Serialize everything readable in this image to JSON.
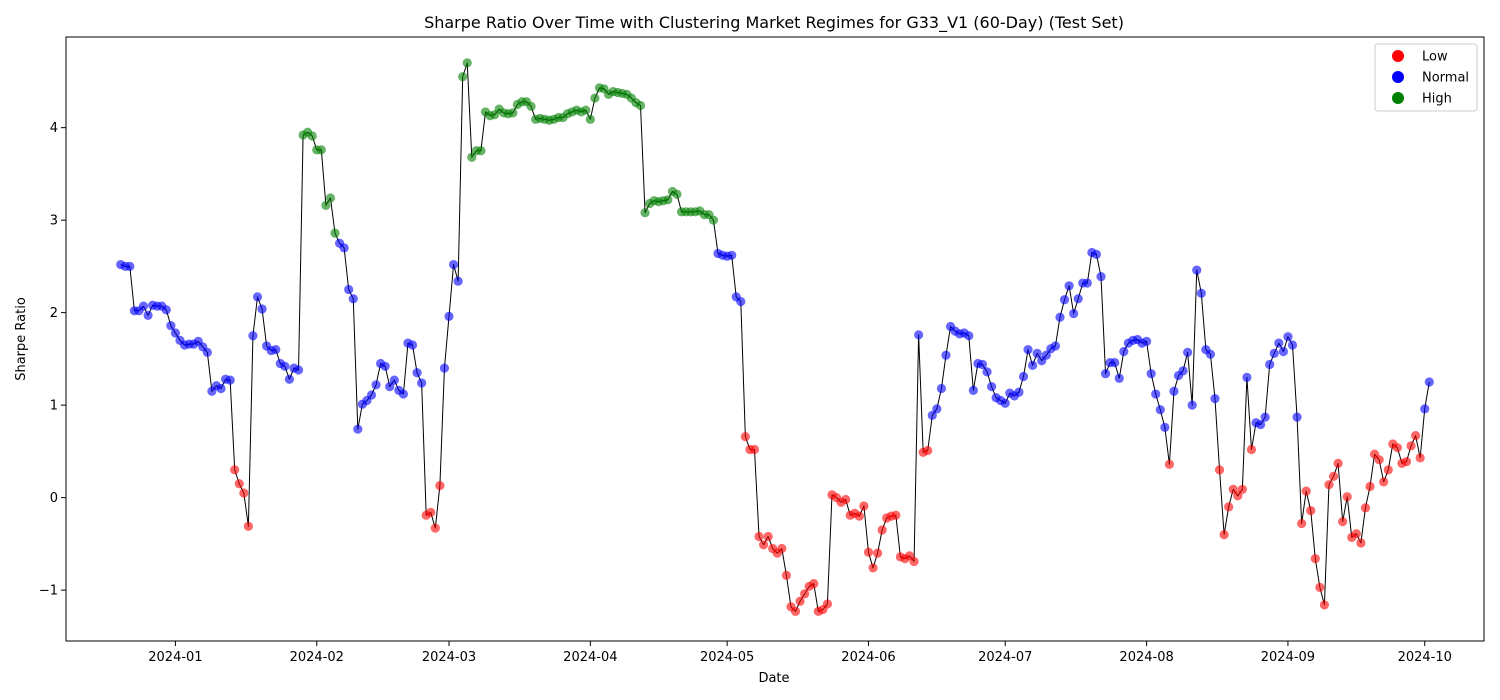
{
  "chart_data": {
    "type": "scatter",
    "title": "Sharpe Ratio Over Time with Clustering Market Regimes for G33_V1 (60-Day) (Test Set)",
    "xlabel": "Date",
    "ylabel": "Sharpe Ratio",
    "x_range": [
      "2023-12-08",
      "2024-10-14"
    ],
    "ylim": [
      -1.55,
      4.98
    ],
    "x_ticks": [
      "2024-01-01",
      "2024-02-01",
      "2024-03-01",
      "2024-04-01",
      "2024-05-01",
      "2024-06-01",
      "2024-07-01",
      "2024-08-01",
      "2024-09-01",
      "2024-10-01"
    ],
    "x_tick_labels": [
      "2024-01",
      "2024-02",
      "2024-03",
      "2024-04",
      "2024-05",
      "2024-06",
      "2024-07",
      "2024-08",
      "2024-09",
      "2024-10"
    ],
    "y_ticks": [
      -1,
      0,
      1,
      2,
      3,
      4
    ],
    "y_tick_labels": [
      "−1",
      "0",
      "1",
      "2",
      "3",
      "4"
    ],
    "grid": false,
    "legend_position": "top-right",
    "legend": [
      {
        "label": "Low",
        "color": "#ff0000"
      },
      {
        "label": "Normal",
        "color": "#0000ff"
      },
      {
        "label": "High",
        "color": "#008000"
      }
    ],
    "line_color": "#000000",
    "point_alpha": 0.6,
    "start_date": "2023-12-20",
    "points": [
      [
        0,
        2.52,
        "N"
      ],
      [
        1,
        2.5,
        "N"
      ],
      [
        2,
        2.5,
        "N"
      ],
      [
        3,
        2.02,
        "N"
      ],
      [
        4,
        2.02,
        "N"
      ],
      [
        5,
        2.07,
        "N"
      ],
      [
        6,
        1.97,
        "N"
      ],
      [
        7,
        2.08,
        "N"
      ],
      [
        8,
        2.07,
        "N"
      ],
      [
        9,
        2.07,
        "N"
      ],
      [
        10,
        2.03,
        "N"
      ],
      [
        11,
        1.86,
        "N"
      ],
      [
        12,
        1.78,
        "N"
      ],
      [
        13,
        1.7,
        "N"
      ],
      [
        14,
        1.65,
        "N"
      ],
      [
        15,
        1.66,
        "N"
      ],
      [
        16,
        1.66,
        "N"
      ],
      [
        17,
        1.69,
        "N"
      ],
      [
        18,
        1.63,
        "N"
      ],
      [
        19,
        1.57,
        "N"
      ],
      [
        20,
        1.15,
        "N"
      ],
      [
        21,
        1.21,
        "N"
      ],
      [
        22,
        1.18,
        "N"
      ],
      [
        23,
        1.28,
        "N"
      ],
      [
        24,
        1.27,
        "N"
      ],
      [
        25,
        0.3,
        "L"
      ],
      [
        26,
        0.15,
        "L"
      ],
      [
        27,
        0.05,
        "L"
      ],
      [
        28,
        -0.31,
        "L"
      ],
      [
        29,
        1.75,
        "N"
      ],
      [
        30,
        2.17,
        "N"
      ],
      [
        31,
        2.04,
        "N"
      ],
      [
        32,
        1.64,
        "N"
      ],
      [
        33,
        1.59,
        "N"
      ],
      [
        34,
        1.6,
        "N"
      ],
      [
        35,
        1.45,
        "N"
      ],
      [
        36,
        1.42,
        "N"
      ],
      [
        37,
        1.28,
        "N"
      ],
      [
        38,
        1.4,
        "N"
      ],
      [
        39,
        1.38,
        "N"
      ],
      [
        40,
        3.92,
        "H"
      ],
      [
        41,
        3.95,
        "H"
      ],
      [
        42,
        3.91,
        "H"
      ],
      [
        43,
        3.76,
        "H"
      ],
      [
        44,
        3.76,
        "H"
      ],
      [
        45,
        3.16,
        "H"
      ],
      [
        46,
        3.24,
        "H"
      ],
      [
        47,
        2.86,
        "H"
      ],
      [
        48,
        2.75,
        "N"
      ],
      [
        49,
        2.7,
        "N"
      ],
      [
        50,
        2.25,
        "N"
      ],
      [
        51,
        2.15,
        "N"
      ],
      [
        52,
        0.74,
        "N"
      ],
      [
        53,
        1.01,
        "N"
      ],
      [
        54,
        1.05,
        "N"
      ],
      [
        55,
        1.11,
        "N"
      ],
      [
        56,
        1.22,
        "N"
      ],
      [
        57,
        1.45,
        "N"
      ],
      [
        58,
        1.42,
        "N"
      ],
      [
        59,
        1.2,
        "N"
      ],
      [
        60,
        1.27,
        "N"
      ],
      [
        61,
        1.16,
        "N"
      ],
      [
        62,
        1.12,
        "N"
      ],
      [
        63,
        1.67,
        "N"
      ],
      [
        64,
        1.65,
        "N"
      ],
      [
        65,
        1.35,
        "N"
      ],
      [
        66,
        1.24,
        "N"
      ],
      [
        67,
        -0.19,
        "L"
      ],
      [
        68,
        -0.16,
        "L"
      ],
      [
        69,
        -0.33,
        "L"
      ],
      [
        70,
        0.13,
        "L"
      ],
      [
        71,
        1.4,
        "N"
      ],
      [
        72,
        1.96,
        "N"
      ],
      [
        73,
        2.52,
        "N"
      ],
      [
        74,
        2.34,
        "N"
      ],
      [
        75,
        4.55,
        "H"
      ],
      [
        76,
        4.7,
        "H"
      ],
      [
        77,
        3.68,
        "H"
      ],
      [
        78,
        3.75,
        "H"
      ],
      [
        79,
        3.75,
        "H"
      ],
      [
        80,
        4.17,
        "H"
      ],
      [
        81,
        4.13,
        "H"
      ],
      [
        82,
        4.14,
        "H"
      ],
      [
        83,
        4.2,
        "H"
      ],
      [
        84,
        4.16,
        "H"
      ],
      [
        85,
        4.15,
        "H"
      ],
      [
        86,
        4.16,
        "H"
      ],
      [
        87,
        4.25,
        "H"
      ],
      [
        88,
        4.28,
        "H"
      ],
      [
        89,
        4.28,
        "H"
      ],
      [
        90,
        4.23,
        "H"
      ],
      [
        91,
        4.09,
        "H"
      ],
      [
        92,
        4.1,
        "H"
      ],
      [
        93,
        4.09,
        "H"
      ],
      [
        94,
        4.08,
        "H"
      ],
      [
        95,
        4.09,
        "H"
      ],
      [
        96,
        4.11,
        "H"
      ],
      [
        97,
        4.11,
        "H"
      ],
      [
        98,
        4.15,
        "H"
      ],
      [
        99,
        4.17,
        "H"
      ],
      [
        100,
        4.19,
        "H"
      ],
      [
        101,
        4.17,
        "H"
      ],
      [
        102,
        4.19,
        "H"
      ],
      [
        103,
        4.09,
        "H"
      ],
      [
        104,
        4.32,
        "H"
      ],
      [
        105,
        4.43,
        "H"
      ],
      [
        106,
        4.42,
        "H"
      ],
      [
        107,
        4.36,
        "H"
      ],
      [
        108,
        4.39,
        "H"
      ],
      [
        109,
        4.38,
        "H"
      ],
      [
        110,
        4.37,
        "H"
      ],
      [
        111,
        4.36,
        "H"
      ],
      [
        112,
        4.32,
        "H"
      ],
      [
        113,
        4.27,
        "H"
      ],
      [
        114,
        4.24,
        "H"
      ],
      [
        115,
        3.08,
        "H"
      ],
      [
        116,
        3.18,
        "H"
      ],
      [
        117,
        3.21,
        "H"
      ],
      [
        118,
        3.2,
        "H"
      ],
      [
        119,
        3.21,
        "H"
      ],
      [
        120,
        3.22,
        "H"
      ],
      [
        121,
        3.31,
        "H"
      ],
      [
        122,
        3.28,
        "H"
      ],
      [
        123,
        3.09,
        "H"
      ],
      [
        124,
        3.09,
        "H"
      ],
      [
        125,
        3.09,
        "H"
      ],
      [
        126,
        3.09,
        "H"
      ],
      [
        127,
        3.1,
        "H"
      ],
      [
        128,
        3.06,
        "H"
      ],
      [
        129,
        3.06,
        "H"
      ],
      [
        130,
        3.0,
        "H"
      ],
      [
        131,
        2.64,
        "N"
      ],
      [
        132,
        2.62,
        "N"
      ],
      [
        133,
        2.61,
        "N"
      ],
      [
        134,
        2.62,
        "N"
      ],
      [
        135,
        2.17,
        "N"
      ],
      [
        136,
        2.12,
        "N"
      ],
      [
        137,
        0.66,
        "L"
      ],
      [
        138,
        0.52,
        "L"
      ],
      [
        139,
        0.52,
        "L"
      ],
      [
        140,
        -0.42,
        "L"
      ],
      [
        141,
        -0.51,
        "L"
      ],
      [
        142,
        -0.42,
        "L"
      ],
      [
        143,
        -0.55,
        "L"
      ],
      [
        144,
        -0.6,
        "L"
      ],
      [
        145,
        -0.55,
        "L"
      ],
      [
        146,
        -0.84,
        "L"
      ],
      [
        147,
        -1.18,
        "L"
      ],
      [
        148,
        -1.23,
        "L"
      ],
      [
        149,
        -1.12,
        "L"
      ],
      [
        150,
        -1.04,
        "L"
      ],
      [
        151,
        -0.96,
        "L"
      ],
      [
        152,
        -0.93,
        "L"
      ],
      [
        153,
        -1.23,
        "L"
      ],
      [
        154,
        -1.21,
        "L"
      ],
      [
        155,
        -1.15,
        "L"
      ],
      [
        156,
        0.03,
        "L"
      ],
      [
        157,
        0.0,
        "L"
      ],
      [
        158,
        -0.05,
        "L"
      ],
      [
        159,
        -0.02,
        "L"
      ],
      [
        160,
        -0.19,
        "L"
      ],
      [
        161,
        -0.17,
        "L"
      ],
      [
        162,
        -0.2,
        "L"
      ],
      [
        163,
        -0.09,
        "L"
      ],
      [
        164,
        -0.59,
        "L"
      ],
      [
        165,
        -0.76,
        "L"
      ],
      [
        166,
        -0.6,
        "L"
      ],
      [
        167,
        -0.35,
        "L"
      ],
      [
        168,
        -0.22,
        "L"
      ],
      [
        169,
        -0.2,
        "L"
      ],
      [
        170,
        -0.19,
        "L"
      ],
      [
        171,
        -0.64,
        "L"
      ],
      [
        172,
        -0.66,
        "L"
      ],
      [
        173,
        -0.63,
        "L"
      ],
      [
        174,
        -0.69,
        "L"
      ],
      [
        175,
        1.76,
        "N"
      ],
      [
        176,
        0.49,
        "L"
      ],
      [
        177,
        0.51,
        "L"
      ],
      [
        178,
        0.89,
        "N"
      ],
      [
        179,
        0.96,
        "N"
      ],
      [
        180,
        1.18,
        "N"
      ],
      [
        181,
        1.54,
        "N"
      ],
      [
        182,
        1.85,
        "N"
      ],
      [
        183,
        1.8,
        "N"
      ],
      [
        184,
        1.77,
        "N"
      ],
      [
        185,
        1.78,
        "N"
      ],
      [
        186,
        1.75,
        "N"
      ],
      [
        187,
        1.16,
        "N"
      ],
      [
        188,
        1.45,
        "N"
      ],
      [
        189,
        1.44,
        "N"
      ],
      [
        190,
        1.36,
        "N"
      ],
      [
        191,
        1.2,
        "N"
      ],
      [
        192,
        1.08,
        "N"
      ],
      [
        193,
        1.05,
        "N"
      ],
      [
        194,
        1.02,
        "N"
      ],
      [
        195,
        1.13,
        "N"
      ],
      [
        196,
        1.1,
        "N"
      ],
      [
        197,
        1.14,
        "N"
      ],
      [
        198,
        1.31,
        "N"
      ],
      [
        199,
        1.6,
        "N"
      ],
      [
        200,
        1.43,
        "N"
      ],
      [
        201,
        1.56,
        "N"
      ],
      [
        202,
        1.48,
        "N"
      ],
      [
        203,
        1.54,
        "N"
      ],
      [
        204,
        1.61,
        "N"
      ],
      [
        205,
        1.64,
        "N"
      ],
      [
        206,
        1.95,
        "N"
      ],
      [
        207,
        2.14,
        "N"
      ],
      [
        208,
        2.29,
        "N"
      ],
      [
        209,
        1.99,
        "N"
      ],
      [
        210,
        2.15,
        "N"
      ],
      [
        211,
        2.32,
        "N"
      ],
      [
        212,
        2.32,
        "N"
      ],
      [
        213,
        2.65,
        "N"
      ],
      [
        214,
        2.63,
        "N"
      ],
      [
        215,
        2.39,
        "N"
      ],
      [
        216,
        1.34,
        "N"
      ],
      [
        217,
        1.46,
        "N"
      ],
      [
        218,
        1.46,
        "N"
      ],
      [
        219,
        1.29,
        "N"
      ],
      [
        220,
        1.58,
        "N"
      ],
      [
        221,
        1.67,
        "N"
      ],
      [
        222,
        1.7,
        "N"
      ],
      [
        223,
        1.71,
        "N"
      ],
      [
        224,
        1.67,
        "N"
      ],
      [
        225,
        1.69,
        "N"
      ],
      [
        226,
        1.34,
        "N"
      ],
      [
        227,
        1.12,
        "N"
      ],
      [
        228,
        0.95,
        "N"
      ],
      [
        229,
        0.76,
        "N"
      ],
      [
        230,
        0.36,
        "L"
      ],
      [
        231,
        1.15,
        "N"
      ],
      [
        232,
        1.32,
        "N"
      ],
      [
        233,
        1.37,
        "N"
      ],
      [
        234,
        1.57,
        "N"
      ],
      [
        235,
        1.0,
        "N"
      ],
      [
        236,
        2.46,
        "N"
      ],
      [
        237,
        2.21,
        "N"
      ],
      [
        238,
        1.6,
        "N"
      ],
      [
        239,
        1.55,
        "N"
      ],
      [
        240,
        1.07,
        "N"
      ],
      [
        241,
        0.3,
        "L"
      ],
      [
        242,
        -0.4,
        "L"
      ],
      [
        243,
        -0.1,
        "L"
      ],
      [
        244,
        0.09,
        "L"
      ],
      [
        245,
        0.02,
        "L"
      ],
      [
        246,
        0.09,
        "L"
      ],
      [
        247,
        1.3,
        "N"
      ],
      [
        248,
        0.52,
        "L"
      ],
      [
        249,
        0.81,
        "N"
      ],
      [
        250,
        0.79,
        "N"
      ],
      [
        251,
        0.87,
        "N"
      ],
      [
        252,
        1.44,
        "N"
      ],
      [
        253,
        1.56,
        "N"
      ],
      [
        254,
        1.67,
        "N"
      ],
      [
        255,
        1.58,
        "N"
      ],
      [
        256,
        1.74,
        "N"
      ],
      [
        257,
        1.65,
        "N"
      ],
      [
        258,
        0.87,
        "N"
      ],
      [
        259,
        -0.28,
        "L"
      ],
      [
        260,
        0.07,
        "L"
      ],
      [
        261,
        -0.14,
        "L"
      ],
      [
        262,
        -0.66,
        "L"
      ],
      [
        263,
        -0.97,
        "L"
      ],
      [
        264,
        -1.16,
        "L"
      ],
      [
        265,
        0.14,
        "L"
      ],
      [
        266,
        0.23,
        "L"
      ],
      [
        267,
        0.37,
        "L"
      ],
      [
        268,
        -0.26,
        "L"
      ],
      [
        269,
        0.01,
        "L"
      ],
      [
        270,
        -0.43,
        "L"
      ],
      [
        271,
        -0.39,
        "L"
      ],
      [
        272,
        -0.49,
        "L"
      ],
      [
        273,
        -0.11,
        "L"
      ],
      [
        274,
        0.12,
        "L"
      ],
      [
        275,
        0.47,
        "L"
      ],
      [
        276,
        0.41,
        "L"
      ],
      [
        277,
        0.17,
        "L"
      ],
      [
        278,
        0.3,
        "L"
      ],
      [
        279,
        0.58,
        "L"
      ],
      [
        280,
        0.54,
        "L"
      ],
      [
        281,
        0.37,
        "L"
      ],
      [
        282,
        0.39,
        "L"
      ],
      [
        283,
        0.56,
        "L"
      ],
      [
        284,
        0.67,
        "L"
      ],
      [
        285,
        0.43,
        "L"
      ],
      [
        286,
        0.96,
        "N"
      ],
      [
        287,
        1.25,
        "N"
      ]
    ]
  }
}
